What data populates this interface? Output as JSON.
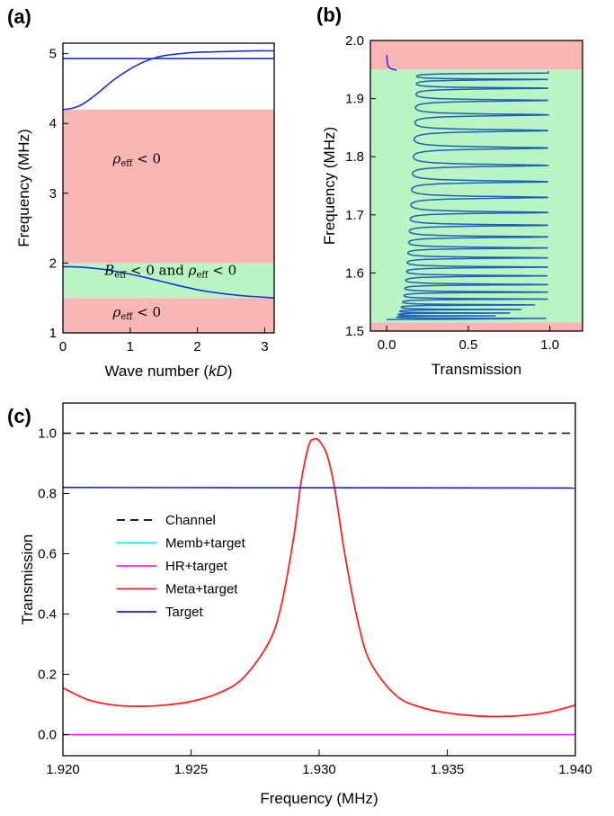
{
  "chart_data": [
    {
      "panel": "(a)",
      "type": "line",
      "xlabel_prefix": "Wave number (",
      "xlabel_var": "kD",
      "xlabel_suffix": ")",
      "ylabel": "Frequency (MHz)",
      "xlim": [
        0,
        3.14159
      ],
      "ylim": [
        1,
        5.15
      ],
      "xticks": [
        "0",
        "1",
        "2",
        "3"
      ],
      "yticks": [
        "1",
        "2",
        "3",
        "4",
        "5"
      ],
      "regions": [
        {
          "ymin": 1.5,
          "ymax": 1.97,
          "color": "#f8b5b3"
        },
        {
          "ymin": 1.97,
          "ymax": 2.0,
          "color": "#b8f5c3"
        },
        {
          "ymin": 1.5,
          "ymax": 1.97,
          "color": "#b8f5c3"
        },
        {
          "ymin": 2.0,
          "ymax": 4.2,
          "color": "#f8b5b3"
        }
      ],
      "band_colors": {
        "negative_density": "#f8b5b3",
        "double_negative": "#b8f5c3"
      },
      "annotations": [
        {
          "symbol": "ρ",
          "sub": "eff",
          "rest": " < 0",
          "x": 1.1,
          "y": 3.43
        },
        {
          "symbol": "B",
          "sub": "eff",
          "rest": " < 0 and ",
          "symbol2": "ρ",
          "sub2": "eff",
          "rest2": " < 0",
          "x": 1.6,
          "y": 1.83
        },
        {
          "symbol": "ρ",
          "sub": "eff",
          "rest": " < 0",
          "x": 1.1,
          "y": 1.23
        }
      ],
      "series": [
        {
          "color": "#1f2fd0",
          "x": [
            0,
            0.15,
            0.3,
            0.5,
            0.75,
            1.0,
            1.25,
            1.5,
            1.75,
            2.0,
            2.4,
            2.8,
            3.14
          ],
          "y": [
            4.2,
            4.22,
            4.28,
            4.42,
            4.62,
            4.78,
            4.9,
            4.97,
            5.0,
            5.02,
            5.03,
            5.04,
            5.04
          ]
        },
        {
          "color": "#1f2fd0",
          "x": [
            0,
            3.14
          ],
          "y": [
            4.93,
            4.93
          ]
        },
        {
          "color": "#1f2fd0",
          "x": [
            0,
            0.3,
            0.6,
            0.9,
            1.2,
            1.5,
            1.8,
            2.1,
            2.4,
            2.7,
            3.0,
            3.14
          ],
          "y": [
            1.95,
            1.94,
            1.91,
            1.86,
            1.8,
            1.73,
            1.66,
            1.6,
            1.56,
            1.53,
            1.51,
            1.5
          ]
        }
      ]
    },
    {
      "panel": "(b)",
      "type": "line",
      "xlabel": "Transmission",
      "ylabel": "Frequency (MHz)",
      "xlim": [
        -0.1,
        1.2
      ],
      "ylim": [
        1.5,
        2.0
      ],
      "xticks": [
        "0.0",
        "0.5",
        "1.0"
      ],
      "yticks": [
        "1.5",
        "1.6",
        "1.7",
        "1.8",
        "1.9",
        "2.0"
      ],
      "regions": [
        {
          "ymin": 1.5,
          "ymax": 1.515,
          "color": "#f8b5b3"
        },
        {
          "ymin": 1.515,
          "ymax": 1.95,
          "color": "#b8f5c3"
        },
        {
          "ymin": 1.95,
          "ymax": 2.0,
          "color": "#f8b5b3"
        }
      ],
      "spectrum": {
        "color": "#1f5fb8",
        "fmin": 1.52,
        "fmax": 1.947,
        "peaks": [
          1.522,
          1.526,
          1.531,
          1.537,
          1.545,
          1.555,
          1.567,
          1.58,
          1.595,
          1.61,
          1.626,
          1.643,
          1.662,
          1.682,
          1.704,
          1.73,
          1.757,
          1.785,
          1.815,
          1.845,
          1.872,
          1.897,
          1.918,
          1.933,
          1.944
        ],
        "baseline_low": 0.02,
        "baseline_high": 0.14,
        "tail": {
          "x": [
            0.0,
            0.005,
            0.01,
            0.03,
            0.06
          ],
          "y": [
            1.975,
            1.96,
            1.955,
            1.951,
            1.949
          ]
        }
      }
    },
    {
      "panel": "(c)",
      "type": "line",
      "xlabel": "Frequency (MHz)",
      "ylabel": "Transmission",
      "xlim": [
        1.92,
        1.94
      ],
      "ylim": [
        -0.07,
        1.1
      ],
      "xticks": [
        "1.920",
        "1.925",
        "1.930",
        "1.935",
        "1.940"
      ],
      "yticks": [
        "0.0",
        "0.2",
        "0.4",
        "0.6",
        "0.8",
        "1.0"
      ],
      "legend_position": "center-left",
      "series": [
        {
          "name": "Channel",
          "color": "#000000",
          "dash": true,
          "x": [
            1.92,
            1.94
          ],
          "y": [
            1.0,
            1.0
          ]
        },
        {
          "name": "Memb+target",
          "color": "#10e5ee",
          "x": [
            1.92,
            1.94
          ],
          "y": [
            0.0,
            0.0
          ]
        },
        {
          "name": "HR+target",
          "color": "#ff1cff",
          "x": [
            1.92,
            1.94
          ],
          "y": [
            0.0,
            0.0
          ]
        },
        {
          "name": "Meta+target",
          "color": "#ff2020",
          "x": [
            1.92,
            1.921,
            1.922,
            1.923,
            1.924,
            1.925,
            1.926,
            1.927,
            1.928,
            1.9285,
            1.929,
            1.9293,
            1.9296,
            1.9298,
            1.93,
            1.9303,
            1.9306,
            1.931,
            1.9315,
            1.932,
            1.933,
            1.934,
            1.935,
            1.936,
            1.937,
            1.938,
            1.939,
            1.94
          ],
          "y": [
            0.155,
            0.115,
            0.098,
            0.094,
            0.098,
            0.11,
            0.135,
            0.185,
            0.3,
            0.42,
            0.65,
            0.84,
            0.96,
            0.98,
            0.975,
            0.93,
            0.82,
            0.6,
            0.38,
            0.24,
            0.13,
            0.09,
            0.072,
            0.063,
            0.06,
            0.064,
            0.075,
            0.098
          ]
        },
        {
          "name": "Target",
          "color": "#1a1ad8",
          "x": [
            1.92,
            1.94
          ],
          "y": [
            0.82,
            0.818
          ]
        }
      ]
    }
  ]
}
